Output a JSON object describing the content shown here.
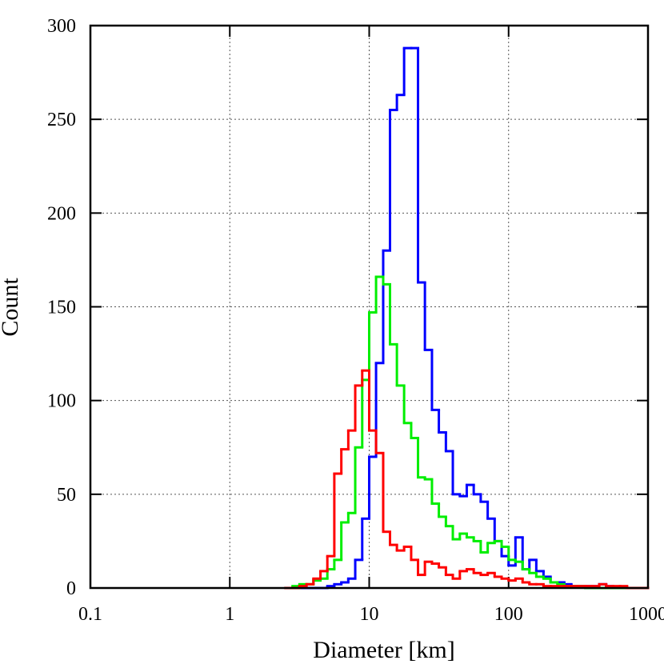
{
  "chart_data": {
    "type": "histogram",
    "xlabel": "Diameter [km]",
    "ylabel": "Count",
    "xscale": "log",
    "grid": true,
    "xlim": [
      0.1,
      1000
    ],
    "xticks": [
      0.1,
      1,
      10,
      100,
      1000
    ],
    "ylim": [
      0,
      300
    ],
    "yticks": [
      0,
      50,
      100,
      150,
      200,
      250,
      300
    ],
    "bins": [
      2.51,
      2.82,
      3.16,
      3.55,
      3.98,
      4.47,
      5.01,
      5.62,
      6.31,
      7.08,
      7.94,
      8.91,
      10,
      11.2,
      12.6,
      14.1,
      15.8,
      17.8,
      20,
      22.4,
      25.1,
      28.2,
      31.6,
      35.5,
      39.8,
      44.7,
      50.1,
      56.2,
      63.1,
      70.8,
      79.4,
      89.1,
      100,
      112,
      126,
      141,
      158,
      178,
      200,
      224,
      251,
      282,
      316,
      355,
      398,
      447,
      501,
      562,
      631,
      708,
      794,
      891,
      1000
    ],
    "series": [
      {
        "color": "#0000ff",
        "values": [
          0,
          0,
          0,
          0,
          0,
          0,
          1,
          2,
          3,
          5,
          15,
          37,
          70,
          120,
          180,
          255,
          263,
          288,
          288,
          163,
          127,
          95,
          83,
          73,
          50,
          49,
          55,
          50,
          46,
          37,
          25,
          17,
          12,
          27,
          10,
          15,
          9,
          6,
          3,
          3,
          2,
          1,
          1,
          1,
          1,
          2,
          1,
          0,
          0,
          0,
          0,
          0
        ]
      },
      {
        "color": "#00ee00",
        "values": [
          0,
          1,
          2,
          2,
          4,
          5,
          10,
          15,
          35,
          40,
          75,
          111,
          147,
          166,
          162,
          130,
          108,
          88,
          80,
          59,
          58,
          45,
          38,
          33,
          26,
          29,
          27,
          25,
          19,
          24,
          25,
          22,
          15,
          14,
          10,
          8,
          6,
          5,
          3,
          2,
          1,
          1,
          1,
          0,
          0,
          0,
          0,
          0,
          0,
          0,
          0,
          0
        ]
      },
      {
        "color": "#ff0000",
        "values": [
          0,
          0,
          1,
          2,
          5,
          9,
          17,
          61,
          74,
          84,
          108,
          116,
          84,
          72,
          30,
          23,
          20,
          22,
          15,
          7,
          14,
          13,
          11,
          7,
          5,
          9,
          10,
          8,
          7,
          8,
          6,
          5,
          4,
          5,
          3,
          2,
          2,
          1,
          1,
          1,
          1,
          1,
          1,
          1,
          1,
          2,
          1,
          1,
          1,
          0,
          0,
          0
        ]
      }
    ]
  }
}
